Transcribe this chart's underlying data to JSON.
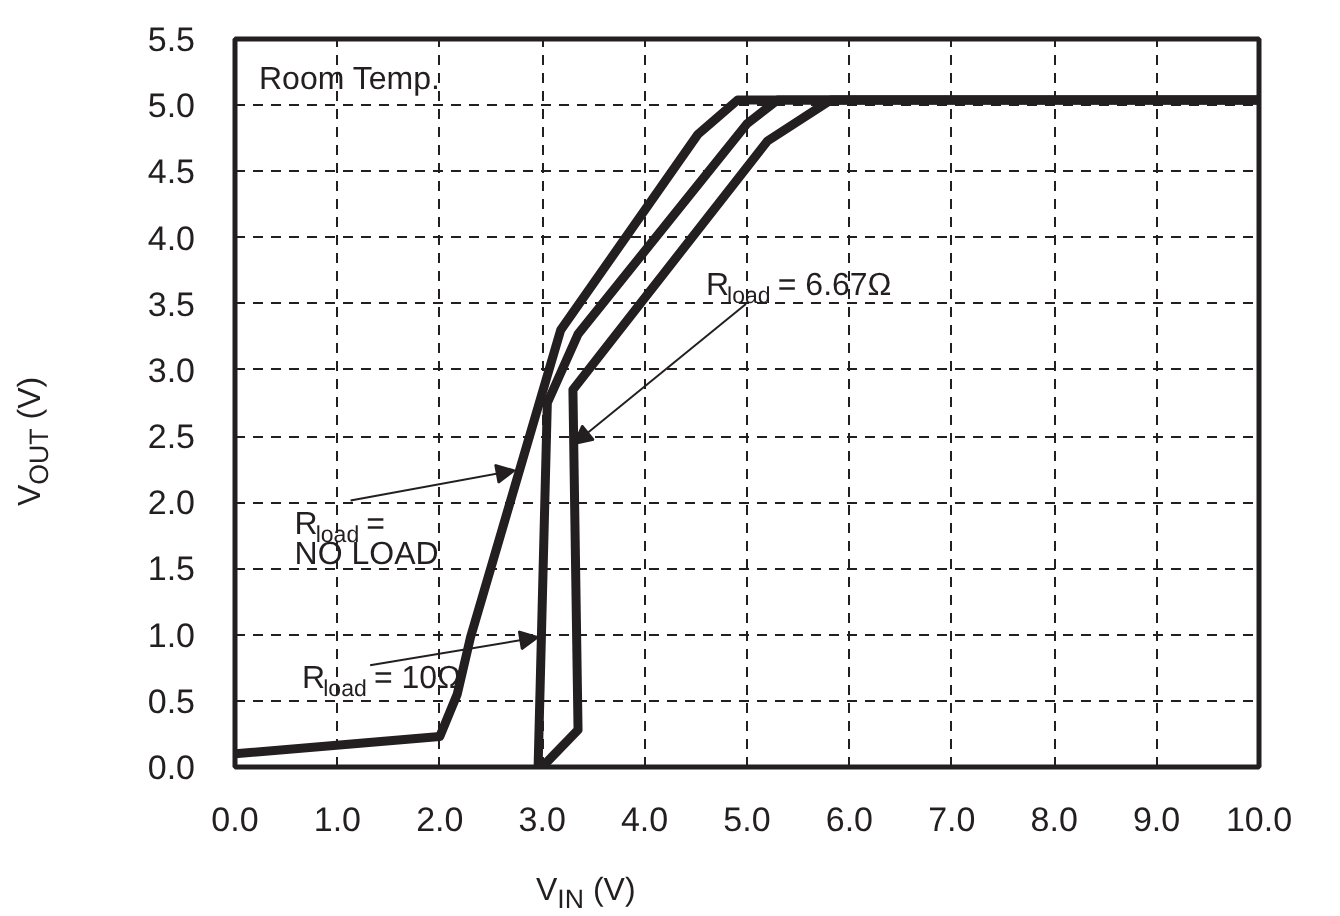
{
  "chart_data": {
    "type": "line",
    "xlabel": "V$_{IN}$ (V)",
    "ylabel": "V$_{OUT}$ (V)",
    "xlim": [
      0,
      10
    ],
    "ylim": [
      0,
      5.5
    ],
    "xticks": [
      {
        "value": 0,
        "label": "0.0"
      },
      {
        "value": 1,
        "label": "1.0"
      },
      {
        "value": 2,
        "label": "2.0"
      },
      {
        "value": 3,
        "label": "3.0"
      },
      {
        "value": 4,
        "label": "4.0"
      },
      {
        "value": 5,
        "label": "5.0"
      },
      {
        "value": 6,
        "label": "6.0"
      },
      {
        "value": 7,
        "label": "7.0"
      },
      {
        "value": 8,
        "label": "8.0"
      },
      {
        "value": 9,
        "label": "9.0"
      },
      {
        "value": 10,
        "label": "10.0"
      }
    ],
    "yticks": [
      {
        "value": 0,
        "label": "0.0"
      },
      0.5,
      {
        "value": 1,
        "label": "1.0"
      },
      1.5,
      {
        "value": 2,
        "label": "2.0"
      },
      2.5,
      {
        "value": 3,
        "label": "3.0"
      },
      3.5,
      {
        "value": 4,
        "label": "4.0"
      },
      4.5,
      {
        "value": 5,
        "label": "5.0"
      },
      5.5
    ],
    "grid": true,
    "marker": "none",
    "line_style": "solid",
    "series": [
      {
        "color": "#231f20",
        "x": [
          0,
          2.0,
          2.17,
          2.3,
          3.18,
          4.52,
          4.91,
          10
        ],
        "values": [
          0.1,
          0.23,
          0.55,
          0.98,
          3.3,
          4.78,
          5.04,
          5.04
        ]
      },
      {
        "color": "#231f20",
        "x": [
          2.96,
          3.05,
          3.35,
          5.0,
          5.3,
          10
        ],
        "values": [
          0,
          2.75,
          3.27,
          4.86,
          5.04,
          5.04
        ]
      },
      {
        "color": "#231f20",
        "x": [
          3.0,
          3.35,
          3.3,
          5.2,
          5.82,
          10
        ],
        "values": [
          0,
          0.28,
          2.85,
          4.73,
          5.04,
          5.04
        ]
      }
    ],
    "annotations": [
      "Room Temp.",
      {
        "text": "R$_{load}$ = NO LOAD",
        "x": 2.73,
        "y": 2.24
      },
      {
        "text": "R$_{load}$ = 10Ω",
        "x": 2.96,
        "y": 0.98
      },
      {
        "text": "R$_{load}$ = 6.67Ω",
        "x": 3.31,
        "y": 2.44
      }
    ]
  }
}
